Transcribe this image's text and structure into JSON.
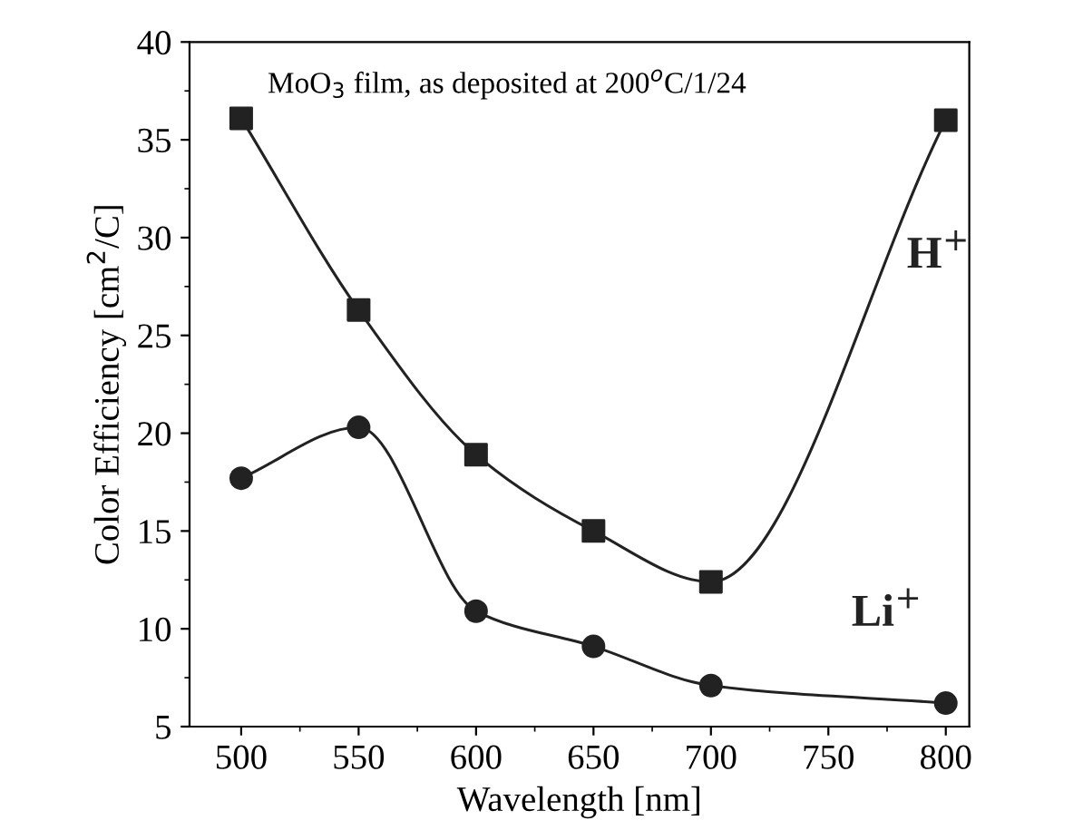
{
  "chart_data": {
    "type": "line",
    "xlabel": "Wavelength [nm]",
    "ylabel": "Color Efficiency [cm$^{2}$/C]",
    "annotations": [
      "MoO$_{3}$ film, as deposited at 200$^{o}$C/1/24"
    ],
    "x": [
      500,
      550,
      600,
      650,
      700,
      800
    ],
    "series": [
      {
        "name": "H$^{+}$",
        "color": "#222222",
        "marker": "square",
        "values": [
          36.1,
          26.3,
          18.9,
          15.0,
          12.4,
          36.0
        ]
      },
      {
        "name": "Li$^{+}$",
        "color": "#222222",
        "marker": "circle",
        "values": [
          17.7,
          20.3,
          10.9,
          9.1,
          7.1,
          6.2
        ]
      }
    ],
    "xlim": [
      478,
      810
    ],
    "xticks": [
      500,
      550,
      600,
      650,
      700,
      750,
      800
    ],
    "ylim": [
      5,
      40
    ],
    "yticks": [
      5,
      10,
      15,
      20,
      25,
      30,
      35,
      40
    ],
    "grid": false,
    "legend": false,
    "line_style": "solid"
  }
}
